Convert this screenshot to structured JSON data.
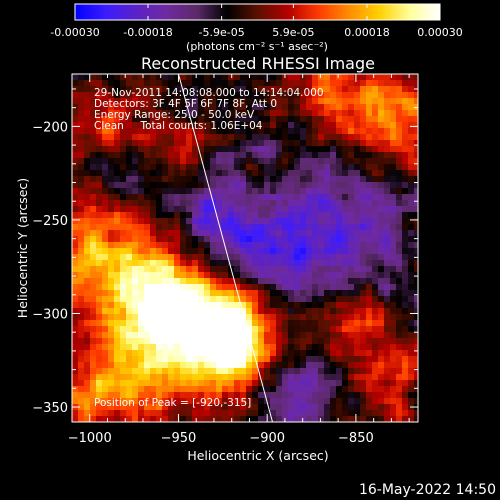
{
  "title": "Reconstructed RHESSI Image",
  "footer_timestamp": "16-May-2022 14:50",
  "colors": {
    "background": "#000000",
    "text": "#ffffff",
    "colormap": [
      "#0000ff",
      "#3b1bff",
      "#5a22c8",
      "#6f2aa0",
      "#5c2a6a",
      "#000000",
      "#5b1000",
      "#b30000",
      "#ff3a00",
      "#ff8c00",
      "#ffd000",
      "#ffff99",
      "#ffffff"
    ]
  },
  "colorbar": {
    "min": -0.0003,
    "max": 0.0003,
    "tick_labels": [
      "-0.00030",
      "-0.00018",
      "-5.9e-05",
      "5.9e-05",
      "0.00018",
      "0.00030"
    ],
    "tick_values": [
      -0.0003,
      -0.00018,
      -5.9e-05,
      5.9e-05,
      0.00018,
      0.0003
    ],
    "unit_label": "(photons cm⁻² s⁻¹ asec⁻²)"
  },
  "annotations": {
    "line1": "29-Nov-2011 14:08:08.000 to 14:14:04.000",
    "line2": "Detectors: 3F 4F 5F 6F 7F 8F, Att 0",
    "line3": "Energy Range: 25.0 - 50.0 keV",
    "line4": "Clean     Total counts: 1.06E+04",
    "peak": "Position of Peak = [-920,-315]"
  },
  "chart_data": {
    "type": "heatmap",
    "title": "Reconstructed RHESSI Image",
    "xlabel": "Heliocentric X (arcsec)",
    "ylabel": "Heliocentric Y (arcsec)",
    "xlim": [
      -1010,
      -815
    ],
    "ylim": [
      -358,
      -172
    ],
    "x_ticks": [
      -1000,
      -950,
      -900,
      -850
    ],
    "x_tick_labels": [
      "−1000",
      "−950",
      "−900",
      "−850"
    ],
    "y_ticks": [
      -200,
      -250,
      -300,
      -350
    ],
    "y_tick_labels": [
      "−200",
      "−250",
      "−300",
      "−350"
    ],
    "value_range": [
      -0.0003,
      0.0003
    ],
    "peak": {
      "x": -920,
      "y": -315
    },
    "limb_line": [
      {
        "x": -950,
        "y": -172
      },
      {
        "x": -897,
        "y": -358
      }
    ],
    "bright_regions": [
      {
        "x": -920,
        "y": -315,
        "radius": 16,
        "amplitude": 0.0003
      },
      {
        "x": -935,
        "y": -305,
        "radius": 22,
        "amplitude": 0.00024
      },
      {
        "x": -990,
        "y": -265,
        "radius": 25,
        "amplitude": 0.0002
      },
      {
        "x": -960,
        "y": -290,
        "radius": 18,
        "amplitude": 0.0002
      },
      {
        "x": -975,
        "y": -330,
        "radius": 22,
        "amplitude": 0.00018
      },
      {
        "x": -830,
        "y": -195,
        "radius": 20,
        "amplitude": 0.00018
      },
      {
        "x": -865,
        "y": -185,
        "radius": 14,
        "amplitude": 0.00015
      },
      {
        "x": -850,
        "y": -305,
        "radius": 18,
        "amplitude": 0.00015
      },
      {
        "x": -905,
        "y": -235,
        "radius": 14,
        "amplitude": 0.00012
      },
      {
        "x": -945,
        "y": -215,
        "radius": 14,
        "amplitude": 0.00013
      },
      {
        "x": -990,
        "y": -200,
        "radius": 14,
        "amplitude": 0.00012
      },
      {
        "x": -1000,
        "y": -345,
        "radius": 14,
        "amplitude": 0.0001
      },
      {
        "x": -830,
        "y": -340,
        "radius": 14,
        "amplitude": 0.00012
      }
    ],
    "dim_regions": [
      {
        "x": -920,
        "y": -250,
        "radius": 25,
        "amplitude": -0.0002
      },
      {
        "x": -860,
        "y": -260,
        "radius": 30,
        "amplitude": -0.00015
      },
      {
        "x": -880,
        "y": -340,
        "radius": 18,
        "amplitude": -0.0001
      },
      {
        "x": -980,
        "y": -230,
        "radius": 14,
        "amplitude": -0.0001
      }
    ]
  }
}
